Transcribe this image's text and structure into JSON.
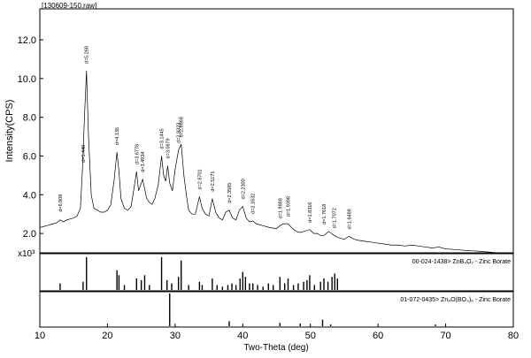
{
  "chart_data": [
    {
      "type": "line",
      "title": "[130609-150.raw]",
      "ylabel": "Intensity(CPS)",
      "xlabel": "Two-Theta (deg)",
      "y_multiplier": "x10³",
      "xlim": [
        10,
        80
      ],
      "ylim": [
        1.0,
        13.6
      ],
      "yticks": [
        "2.0",
        "4.0",
        "6.0",
        "8.0",
        "10.0",
        "12.0"
      ],
      "xticks": [
        "10",
        "20",
        "30",
        "40",
        "50",
        "60",
        "70",
        "80"
      ],
      "grid": false,
      "series": [
        {
          "x": [
            10.0,
            11.0,
            12.0,
            12.5,
            13.0,
            13.5,
            14.0,
            14.5,
            15.0,
            15.5,
            16.0,
            16.3,
            16.6,
            16.9,
            17.2,
            17.6,
            18.0,
            18.5,
            19.0,
            19.5,
            20.0,
            20.5,
            21.0,
            21.4,
            21.7,
            22.0,
            22.5,
            23.0,
            23.5,
            24.0,
            24.3,
            24.6,
            24.9,
            25.2,
            25.5,
            25.8,
            26.2,
            26.6,
            27.0,
            27.5,
            28.0,
            28.3,
            28.6,
            28.9,
            29.2,
            29.6,
            30.0,
            30.5,
            30.9,
            31.3,
            31.7,
            32.0,
            32.5,
            33.0,
            33.6,
            34.0,
            34.5,
            35.0,
            35.5,
            36.0,
            36.5,
            37.0,
            37.5,
            38.0,
            38.5,
            39.0,
            39.5,
            40.0,
            40.5,
            41.0,
            41.5,
            42.0,
            42.5,
            43.0,
            44.0,
            45.0,
            45.5,
            46.0,
            46.7,
            47.5,
            48.0,
            48.5,
            49.0,
            49.9,
            50.5,
            51.0,
            51.5,
            52.0,
            52.7,
            53.5,
            54.0,
            54.5,
            55.0,
            55.7,
            56.5,
            57.0,
            58.0,
            59.0,
            60.0,
            61.0,
            62.0,
            63.0,
            64.0,
            65.0,
            66.0,
            67.0,
            68.0,
            69.0,
            70.0,
            71.0,
            72.0,
            73.0,
            74.0,
            75.0,
            76.0,
            77.0,
            78.0,
            79.0,
            80.0
          ],
          "y": [
            2.3,
            2.4,
            2.5,
            2.55,
            2.7,
            2.6,
            2.7,
            2.75,
            2.8,
            2.9,
            3.3,
            5.3,
            8.0,
            10.4,
            7.0,
            4.0,
            3.3,
            3.2,
            3.1,
            3.1,
            3.2,
            3.5,
            4.8,
            6.2,
            5.2,
            3.8,
            3.3,
            3.2,
            3.4,
            4.5,
            5.2,
            4.2,
            4.5,
            4.8,
            4.3,
            3.8,
            3.6,
            3.5,
            3.8,
            4.5,
            6.0,
            5.0,
            4.7,
            5.5,
            4.6,
            4.2,
            5.3,
            6.3,
            6.6,
            5.0,
            3.9,
            3.2,
            3.0,
            3.0,
            3.9,
            3.3,
            3.0,
            2.9,
            3.8,
            3.1,
            2.8,
            2.7,
            3.1,
            3.2,
            2.8,
            2.7,
            3.2,
            3.4,
            2.8,
            2.6,
            2.65,
            2.5,
            2.45,
            2.4,
            2.3,
            2.25,
            2.4,
            2.5,
            2.5,
            2.2,
            2.1,
            2.05,
            2.1,
            2.2,
            2.0,
            2.0,
            1.9,
            1.9,
            2.1,
            1.9,
            1.8,
            1.75,
            1.7,
            1.85,
            1.7,
            1.65,
            1.6,
            1.55,
            1.5,
            1.45,
            1.4,
            1.4,
            1.35,
            1.4,
            1.35,
            1.3,
            1.25,
            1.3,
            1.2,
            1.18,
            1.15,
            1.12,
            1.1,
            1.08,
            1.05,
            1.02,
            1.0,
            0.98,
            0.95
          ]
        }
      ],
      "annotations": [
        {
          "x": 13.0,
          "y": 2.75,
          "label": "d=6.808"
        },
        {
          "x": 16.4,
          "y": 5.3,
          "label": "d=5.440"
        },
        {
          "x": 16.9,
          "y": 10.4,
          "label": "d=5.268"
        },
        {
          "x": 21.4,
          "y": 6.2,
          "label": "d=4.135"
        },
        {
          "x": 24.3,
          "y": 5.2,
          "label": "d=3.6778"
        },
        {
          "x": 25.2,
          "y": 4.8,
          "label": "d=3.4934"
        },
        {
          "x": 28.0,
          "y": 6.0,
          "label": "d=3.1445"
        },
        {
          "x": 28.9,
          "y": 5.5,
          "label": "d=3.0679"
        },
        {
          "x": 30.5,
          "y": 6.3,
          "label": "d=2.9323"
        },
        {
          "x": 30.9,
          "y": 6.6,
          "label": "d=2.8868"
        },
        {
          "x": 33.6,
          "y": 3.9,
          "label": "d=2.6701"
        },
        {
          "x": 35.5,
          "y": 3.8,
          "label": "d=2.5171"
        },
        {
          "x": 38.0,
          "y": 3.2,
          "label": "d=2.3585"
        },
        {
          "x": 40.0,
          "y": 3.4,
          "label": "d=2.2300"
        },
        {
          "x": 41.5,
          "y": 2.65,
          "label": "d=2.1632"
        },
        {
          "x": 45.5,
          "y": 2.4,
          "label": "d=1.9868"
        },
        {
          "x": 46.7,
          "y": 2.5,
          "label": "d=1.9398"
        },
        {
          "x": 49.9,
          "y": 2.2,
          "label": "d=1.8316"
        },
        {
          "x": 52.0,
          "y": 2.1,
          "label": "d=1.7618"
        },
        {
          "x": 53.5,
          "y": 1.9,
          "label": "d=1.7072"
        },
        {
          "x": 55.7,
          "y": 1.85,
          "label": "d=1.6489"
        }
      ]
    },
    {
      "type": "bar",
      "title": "00-024-1438> ZnB₄O₇ - Zinc Borate",
      "xlim": [
        10,
        80
      ],
      "x": [
        13.0,
        16.4,
        16.9,
        21.4,
        21.7,
        22.5,
        24.3,
        25.0,
        25.5,
        26.2,
        28.0,
        28.8,
        29.5,
        30.5,
        30.9,
        32.0,
        33.6,
        34.0,
        35.5,
        36.2,
        37.0,
        37.8,
        38.4,
        39.0,
        39.6,
        40.0,
        40.4,
        41.0,
        41.5,
        42.2,
        43.0,
        43.8,
        44.5,
        45.5,
        46.2,
        46.7,
        47.5,
        48.2,
        49.0,
        49.5,
        49.9,
        50.6,
        51.5,
        52.0,
        52.6,
        53.2,
        53.6,
        54.0
      ],
      "values": [
        20,
        25,
        100,
        60,
        45,
        15,
        35,
        30,
        45,
        15,
        100,
        30,
        20,
        40,
        90,
        15,
        25,
        15,
        35,
        15,
        10,
        15,
        20,
        15,
        35,
        55,
        40,
        20,
        20,
        15,
        10,
        20,
        15,
        40,
        20,
        35,
        15,
        20,
        25,
        30,
        45,
        15,
        25,
        35,
        25,
        40,
        50,
        35
      ]
    },
    {
      "type": "bar",
      "title": "01-072-0435> Zn₄O(BO₃)₆ - Zinc Borate",
      "xlim": [
        10,
        80
      ],
      "x": [
        29.2,
        38.0,
        45.5,
        48.5,
        51.8,
        53.0,
        68.5
      ],
      "values": [
        100,
        15,
        10,
        8,
        20,
        5,
        5
      ]
    }
  ]
}
